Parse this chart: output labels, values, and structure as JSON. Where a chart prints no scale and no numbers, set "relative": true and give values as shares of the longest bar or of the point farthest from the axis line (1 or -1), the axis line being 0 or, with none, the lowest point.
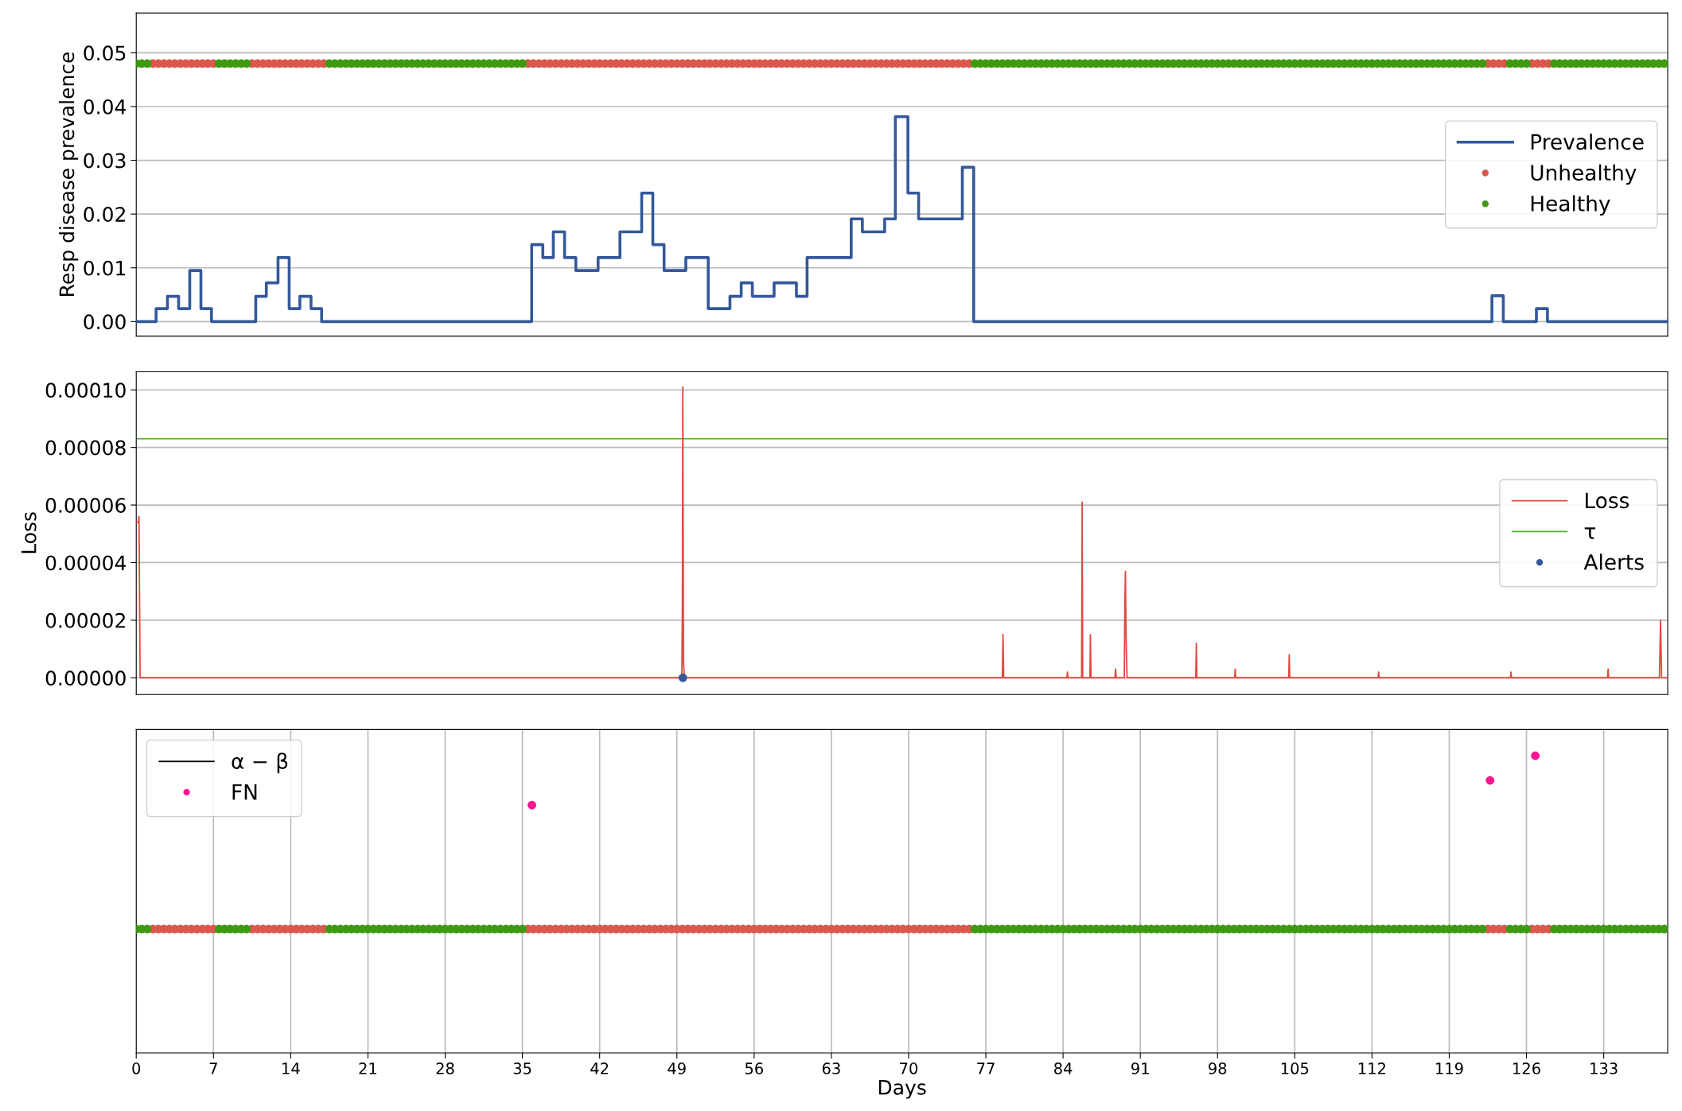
{
  "chart_data": [
    {
      "type": "step",
      "ylabel": "Resp disease prevalence",
      "xlim": [
        0,
        138.8
      ],
      "ylim": [
        -0.0027,
        0.0574
      ],
      "yticks": [
        {
          "value": 0,
          "label": "0.00"
        },
        {
          "value": 0.01,
          "label": "0.01"
        },
        {
          "value": 0.02,
          "label": "0.02"
        },
        {
          "value": 0.03,
          "label": "0.03"
        },
        {
          "value": 0.04,
          "label": "0.04"
        },
        {
          "value": 0.05,
          "label": "0.05"
        }
      ],
      "grid": "y",
      "legend": "right",
      "tick_labels": "y",
      "series": [
        {
          "name": "Prevalence",
          "color": "#34589a",
          "x": [
            0,
            1.8,
            2.83,
            3.84,
            4.85,
            5.86,
            6.82,
            10.83,
            11.79,
            12.85,
            13.86,
            14.83,
            15.84,
            16.8,
            35.84,
            36.85,
            37.8,
            38.82,
            39.84,
            41.86,
            43.84,
            45.81,
            46.82,
            47.84,
            49.81,
            51.84,
            53.81,
            54.83,
            55.84,
            57.81,
            59.83,
            60.8,
            64.8,
            65.81,
            67.83,
            68.8,
            69.94,
            70.91,
            74.87,
            75.9,
            122.87,
            123.9,
            126.9,
            127.9,
            138.8
          ],
          "values": [
            0,
            0.0024,
            0.0047,
            0.0024,
            0.0095,
            0.0024,
            0,
            0.0047,
            0.0072,
            0.0119,
            0.0024,
            0.0047,
            0.0024,
            0,
            0.0143,
            0.0119,
            0.0167,
            0.0119,
            0.0095,
            0.0119,
            0.0167,
            0.0239,
            0.0143,
            0.0095,
            0.0119,
            0.0024,
            0.0047,
            0.0072,
            0.0047,
            0.0072,
            0.0047,
            0.0119,
            0.0191,
            0.0167,
            0.0191,
            0.0381,
            0.0239,
            0.0191,
            0.0287,
            0,
            0.0048,
            0,
            0.0024,
            0,
            0
          ]
        },
        {
          "name": "Unhealthy",
          "type": "scatter",
          "color": "#dc574d",
          "x": [
            1.5,
            2,
            2.5,
            3,
            3.5,
            4,
            4.5,
            5,
            5.5,
            6,
            6.5,
            7,
            10.5,
            11,
            11.5,
            12,
            12.5,
            13,
            13.5,
            14,
            14.5,
            15,
            15.5,
            16,
            16.5,
            17,
            35.5,
            36,
            36.5,
            37,
            37.5,
            38,
            38.5,
            39,
            39.5,
            40,
            40.5,
            41,
            41.5,
            42,
            42.5,
            43,
            43.5,
            44,
            44.5,
            45,
            45.5,
            46,
            46.5,
            47,
            47.5,
            48,
            48.5,
            49,
            49.5,
            50,
            50.5,
            51,
            51.5,
            52,
            52.5,
            53,
            53.5,
            54,
            54.5,
            55,
            55.5,
            56,
            56.5,
            57,
            57.5,
            58,
            58.5,
            59,
            59.5,
            60,
            60.5,
            61,
            61.5,
            62,
            62.5,
            63,
            63.5,
            64,
            64.5,
            65,
            65.5,
            66,
            66.5,
            67,
            67.5,
            68,
            68.5,
            69,
            69.5,
            70,
            70.5,
            71,
            71.5,
            72,
            72.5,
            73,
            73.5,
            74,
            74.5,
            75,
            75.5,
            122.5,
            123,
            123.5,
            124,
            126.5,
            127,
            127.5,
            128
          ],
          "values": [
            0.048,
            0.048,
            0.048,
            0.048,
            0.048,
            0.048,
            0.048,
            0.048,
            0.048,
            0.048,
            0.048,
            0.048,
            0.048,
            0.048,
            0.048,
            0.048,
            0.048,
            0.048,
            0.048,
            0.048,
            0.048,
            0.048,
            0.048,
            0.048,
            0.048,
            0.048,
            0.048,
            0.048,
            0.048,
            0.048,
            0.048,
            0.048,
            0.048,
            0.048,
            0.048,
            0.048,
            0.048,
            0.048,
            0.048,
            0.048,
            0.048,
            0.048,
            0.048,
            0.048,
            0.048,
            0.048,
            0.048,
            0.048,
            0.048,
            0.048,
            0.048,
            0.048,
            0.048,
            0.048,
            0.048,
            0.048,
            0.048,
            0.048,
            0.048,
            0.048,
            0.048,
            0.048,
            0.048,
            0.048,
            0.048,
            0.048,
            0.048,
            0.048,
            0.048,
            0.048,
            0.048,
            0.048,
            0.048,
            0.048,
            0.048,
            0.048,
            0.048,
            0.048,
            0.048,
            0.048,
            0.048,
            0.048,
            0.048,
            0.048,
            0.048,
            0.048,
            0.048,
            0.048,
            0.048,
            0.048,
            0.048,
            0.048,
            0.048,
            0.048,
            0.048,
            0.048,
            0.048,
            0.048,
            0.048,
            0.048,
            0.048,
            0.048,
            0.048,
            0.048,
            0.048,
            0.048,
            0.048,
            0.048,
            0.048,
            0.048,
            0.048,
            0.048,
            0.048,
            0.048,
            0.048
          ]
        },
        {
          "name": "Healthy",
          "type": "scatter",
          "color": "#3f9a12",
          "x": [
            0,
            0.5,
            1,
            7.5,
            8,
            8.5,
            9,
            9.5,
            10,
            17.5,
            18,
            18.5,
            19,
            19.5,
            20,
            20.5,
            21,
            21.5,
            22,
            22.5,
            23,
            23.5,
            24,
            24.5,
            25,
            25.5,
            26,
            26.5,
            27,
            27.5,
            28,
            28.5,
            29,
            29.5,
            30,
            30.5,
            31,
            31.5,
            32,
            32.5,
            33,
            33.5,
            34,
            34.5,
            35,
            76,
            76.5,
            77,
            77.5,
            78,
            78.5,
            79,
            79.5,
            80,
            80.5,
            81,
            81.5,
            82,
            82.5,
            83,
            83.5,
            84,
            84.5,
            85,
            85.5,
            86,
            86.5,
            87,
            87.5,
            88,
            88.5,
            89,
            89.5,
            90,
            90.5,
            91,
            91.5,
            92,
            92.5,
            93,
            93.5,
            94,
            94.5,
            95,
            95.5,
            96,
            96.5,
            97,
            97.5,
            98,
            98.5,
            99,
            99.5,
            100,
            100.5,
            101,
            101.5,
            102,
            102.5,
            103,
            103.5,
            104,
            104.5,
            105,
            105.5,
            106,
            106.5,
            107,
            107.5,
            108,
            108.5,
            109,
            109.5,
            110,
            110.5,
            111,
            111.5,
            112,
            112.5,
            113,
            113.5,
            114,
            114.5,
            115,
            115.5,
            116,
            116.5,
            117,
            117.5,
            118,
            118.5,
            119,
            119.5,
            120,
            120.5,
            121,
            121.5,
            122,
            124.5,
            125,
            125.5,
            126,
            128.5,
            129,
            129.5,
            130,
            130.5,
            131,
            131.5,
            132,
            132.5,
            133,
            133.5,
            134,
            134.5,
            135,
            135.5,
            136,
            136.5,
            137,
            137.5,
            138,
            138.5
          ],
          "values": [
            0.048,
            0.048,
            0.048,
            0.048,
            0.048,
            0.048,
            0.048,
            0.048,
            0.048,
            0.048,
            0.048,
            0.048,
            0.048,
            0.048,
            0.048,
            0.048,
            0.048,
            0.048,
            0.048,
            0.048,
            0.048,
            0.048,
            0.048,
            0.048,
            0.048,
            0.048,
            0.048,
            0.048,
            0.048,
            0.048,
            0.048,
            0.048,
            0.048,
            0.048,
            0.048,
            0.048,
            0.048,
            0.048,
            0.048,
            0.048,
            0.048,
            0.048,
            0.048,
            0.048,
            0.048,
            0.048,
            0.048,
            0.048,
            0.048,
            0.048,
            0.048,
            0.048,
            0.048,
            0.048,
            0.048,
            0.048,
            0.048,
            0.048,
            0.048,
            0.048,
            0.048,
            0.048,
            0.048,
            0.048,
            0.048,
            0.048,
            0.048,
            0.048,
            0.048,
            0.048,
            0.048,
            0.048,
            0.048,
            0.048,
            0.048,
            0.048,
            0.048,
            0.048,
            0.048,
            0.048,
            0.048,
            0.048,
            0.048,
            0.048,
            0.048,
            0.048,
            0.048,
            0.048,
            0.048,
            0.048,
            0.048,
            0.048,
            0.048,
            0.048,
            0.048,
            0.048,
            0.048,
            0.048,
            0.048,
            0.048,
            0.048,
            0.048,
            0.048,
            0.048,
            0.048,
            0.048,
            0.048,
            0.048,
            0.048,
            0.048,
            0.048,
            0.048,
            0.048,
            0.048,
            0.048,
            0.048,
            0.048,
            0.048,
            0.048,
            0.048,
            0.048,
            0.048,
            0.048,
            0.048,
            0.048,
            0.048,
            0.048,
            0.048,
            0.048,
            0.048,
            0.048,
            0.048,
            0.048,
            0.048,
            0.048,
            0.048,
            0.048,
            0.048,
            0.048,
            0.048,
            0.048,
            0.048,
            0.048,
            0.048,
            0.048,
            0.048,
            0.048,
            0.048,
            0.048,
            0.048,
            0.048,
            0.048,
            0.048,
            0.048,
            0.048,
            0.048,
            0.048,
            0.048,
            0.048,
            0.048,
            0.048,
            0.048,
            0.048
          ]
        }
      ]
    },
    {
      "type": "line",
      "ylabel": "Loss",
      "xlim": [
        0,
        138.8
      ],
      "ylim": [
        -5.8e-06,
        0.0001063
      ],
      "yticks": [
        {
          "value": 0,
          "label": "0.00000"
        },
        {
          "value": 2e-05,
          "label": "0.00002"
        },
        {
          "value": 4e-05,
          "label": "0.00004"
        },
        {
          "value": 6e-05,
          "label": "0.00006"
        },
        {
          "value": 8e-05,
          "label": "0.00008"
        },
        {
          "value": 0.0001,
          "label": "0.00010"
        }
      ],
      "grid": "y",
      "legend": "right",
      "tick_labels": "y",
      "ref_lines": [
        {
          "axis": "y",
          "value": 8.3e-05,
          "label": "τ",
          "color": "#4caf20"
        }
      ],
      "series": [
        {
          "name": "Loss",
          "color": "#e04a3f",
          "x": [
            0,
            0.2,
            0.25,
            0.35,
            49.45,
            49.5,
            49.54,
            49.6,
            49.7,
            78.5,
            78.56,
            78.62,
            84.35,
            84.4,
            84.45,
            85.68,
            85.73,
            85.78,
            86.43,
            86.48,
            86.53,
            88.7,
            88.76,
            88.82,
            89.55,
            89.6,
            89.65,
            89.72,
            89.8,
            96.03,
            96.08,
            96.13,
            99.55,
            99.6,
            99.65,
            104.45,
            104.5,
            104.55,
            112.55,
            112.6,
            112.65,
            124.55,
            124.6,
            124.65,
            133.35,
            133.4,
            133.45,
            138.05,
            138.1,
            138.15,
            138.25,
            138.8
          ],
          "values": [
            5.4e-05,
            5.4e-05,
            5.6e-05,
            0,
            0,
            2.6e-05,
            0.000101,
            5e-06,
            0,
            0,
            1.5e-05,
            0,
            0,
            2e-06,
            0,
            0,
            6.1e-05,
            0,
            0,
            1.5e-05,
            0,
            0,
            3e-06,
            0,
            0,
            2.5e-05,
            3.7e-05,
            1.2e-05,
            0,
            0,
            1.2e-05,
            0,
            0,
            3e-06,
            0,
            0,
            8e-06,
            0,
            0,
            2e-06,
            0,
            0,
            2e-06,
            0,
            0,
            3e-06,
            0,
            0,
            1e-05,
            2e-05,
            0,
            0
          ]
        },
        {
          "name": "Alerts",
          "type": "scatter",
          "color": "#34589a",
          "x": [
            49.54
          ],
          "values": [
            0
          ]
        }
      ]
    },
    {
      "type": "scatter",
      "relative": true,
      "xlabel": "Days",
      "xlim": [
        0,
        138.8
      ],
      "xticks": [
        0,
        7,
        14,
        21,
        28,
        35,
        42,
        49,
        56,
        63,
        70,
        77,
        84,
        91,
        98,
        105,
        112,
        119,
        126,
        133
      ],
      "grid": "x",
      "legend": "upper left",
      "tick_labels": "x",
      "series": [
        {
          "name": "α − β",
          "type": "line",
          "color": "#000000",
          "values": [
            null
          ]
        },
        {
          "color": "#dc574d",
          "x": [
            1.5,
            2,
            2.5,
            3,
            3.5,
            4,
            4.5,
            5,
            5.5,
            6,
            6.5,
            7,
            10.5,
            11,
            11.5,
            12,
            12.5,
            13,
            13.5,
            14,
            14.5,
            15,
            15.5,
            16,
            16.5,
            17,
            35.5,
            36,
            36.5,
            37,
            37.5,
            38,
            38.5,
            39,
            39.5,
            40,
            40.5,
            41,
            41.5,
            42,
            42.5,
            43,
            43.5,
            44,
            44.5,
            45,
            45.5,
            46,
            46.5,
            47,
            47.5,
            48,
            48.5,
            49,
            49.5,
            50,
            50.5,
            51,
            51.5,
            52,
            52.5,
            53,
            53.5,
            54,
            54.5,
            55,
            55.5,
            56,
            56.5,
            57,
            57.5,
            58,
            58.5,
            59,
            59.5,
            60,
            60.5,
            61,
            61.5,
            62,
            62.5,
            63,
            63.5,
            64,
            64.5,
            65,
            65.5,
            66,
            66.5,
            67,
            67.5,
            68,
            68.5,
            69,
            69.5,
            70,
            70.5,
            71,
            71.5,
            72,
            72.5,
            73,
            73.5,
            74,
            74.5,
            75,
            75.5,
            122.5,
            123,
            123.5,
            124,
            126.5,
            127,
            127.5,
            128
          ],
          "values": [
            0.417,
            0.417,
            0.417,
            0.417,
            0.417,
            0.417,
            0.417,
            0.417,
            0.417,
            0.417,
            0.417,
            0.417,
            0.417,
            0.417,
            0.417,
            0.417,
            0.417,
            0.417,
            0.417,
            0.417,
            0.417,
            0.417,
            0.417,
            0.417,
            0.417,
            0.417,
            0.417,
            0.417,
            0.417,
            0.417,
            0.417,
            0.417,
            0.417,
            0.417,
            0.417,
            0.417,
            0.417,
            0.417,
            0.417,
            0.417,
            0.417,
            0.417,
            0.417,
            0.417,
            0.417,
            0.417,
            0.417,
            0.417,
            0.417,
            0.417,
            0.417,
            0.417,
            0.417,
            0.417,
            0.417,
            0.417,
            0.417,
            0.417,
            0.417,
            0.417,
            0.417,
            0.417,
            0.417,
            0.417,
            0.417,
            0.417,
            0.417,
            0.417,
            0.417,
            0.417,
            0.417,
            0.417,
            0.417,
            0.417,
            0.417,
            0.417,
            0.417,
            0.417,
            0.417,
            0.417,
            0.417,
            0.417,
            0.417,
            0.417,
            0.417,
            0.417,
            0.417,
            0.417,
            0.417,
            0.417,
            0.417,
            0.417,
            0.417,
            0.417,
            0.417,
            0.417,
            0.417,
            0.417,
            0.417,
            0.417,
            0.417,
            0.417,
            0.417,
            0.417,
            0.417,
            0.417,
            0.417,
            0.417,
            0.417,
            0.417,
            0.417,
            0.417,
            0.417,
            0.417,
            0.417
          ]
        },
        {
          "color": "#3f9a12",
          "x": [
            0,
            0.5,
            1,
            7.5,
            8,
            8.5,
            9,
            9.5,
            10,
            17.5,
            18,
            18.5,
            19,
            19.5,
            20,
            20.5,
            21,
            21.5,
            22,
            22.5,
            23,
            23.5,
            24,
            24.5,
            25,
            25.5,
            26,
            26.5,
            27,
            27.5,
            28,
            28.5,
            29,
            29.5,
            30,
            30.5,
            31,
            31.5,
            32,
            32.5,
            33,
            33.5,
            34,
            34.5,
            35,
            76,
            76.5,
            77,
            77.5,
            78,
            78.5,
            79,
            79.5,
            80,
            80.5,
            81,
            81.5,
            82,
            82.5,
            83,
            83.5,
            84,
            84.5,
            85,
            85.5,
            86,
            86.5,
            87,
            87.5,
            88,
            88.5,
            89,
            89.5,
            90,
            90.5,
            91,
            91.5,
            92,
            92.5,
            93,
            93.5,
            94,
            94.5,
            95,
            95.5,
            96,
            96.5,
            97,
            97.5,
            98,
            98.5,
            99,
            99.5,
            100,
            100.5,
            101,
            101.5,
            102,
            102.5,
            103,
            103.5,
            104,
            104.5,
            105,
            105.5,
            106,
            106.5,
            107,
            107.5,
            108,
            108.5,
            109,
            109.5,
            110,
            110.5,
            111,
            111.5,
            112,
            112.5,
            113,
            113.5,
            114,
            114.5,
            115,
            115.5,
            116,
            116.5,
            117,
            117.5,
            118,
            118.5,
            119,
            119.5,
            120,
            120.5,
            121,
            121.5,
            122,
            124.5,
            125,
            125.5,
            126,
            128.5,
            129,
            129.5,
            130,
            130.5,
            131,
            131.5,
            132,
            132.5,
            133,
            133.5,
            134,
            134.5,
            135,
            135.5,
            136,
            136.5,
            137,
            137.5,
            138,
            138.5
          ],
          "values": [
            0.417,
            0.417,
            0.417,
            0.417,
            0.417,
            0.417,
            0.417,
            0.417,
            0.417,
            0.417,
            0.417,
            0.417,
            0.417,
            0.417,
            0.417,
            0.417,
            0.417,
            0.417,
            0.417,
            0.417,
            0.417,
            0.417,
            0.417,
            0.417,
            0.417,
            0.417,
            0.417,
            0.417,
            0.417,
            0.417,
            0.417,
            0.417,
            0.417,
            0.417,
            0.417,
            0.417,
            0.417,
            0.417,
            0.417,
            0.417,
            0.417,
            0.417,
            0.417,
            0.417,
            0.417,
            0.417,
            0.417,
            0.417,
            0.417,
            0.417,
            0.417,
            0.417,
            0.417,
            0.417,
            0.417,
            0.417,
            0.417,
            0.417,
            0.417,
            0.417,
            0.417,
            0.417,
            0.417,
            0.417,
            0.417,
            0.417,
            0.417,
            0.417,
            0.417,
            0.417,
            0.417,
            0.417,
            0.417,
            0.417,
            0.417,
            0.417,
            0.417,
            0.417,
            0.417,
            0.417,
            0.417,
            0.417,
            0.417,
            0.417,
            0.417,
            0.417,
            0.417,
            0.417,
            0.417,
            0.417,
            0.417,
            0.417,
            0.417,
            0.417,
            0.417,
            0.417,
            0.417,
            0.417,
            0.417,
            0.417,
            0.417,
            0.417,
            0.417,
            0.417,
            0.417,
            0.417,
            0.417,
            0.417,
            0.417,
            0.417,
            0.417,
            0.417,
            0.417,
            0.417,
            0.417,
            0.417,
            0.417,
            0.417,
            0.417,
            0.417,
            0.417,
            0.417,
            0.417,
            0.417,
            0.417,
            0.417,
            0.417,
            0.417,
            0.417,
            0.417,
            0.417,
            0.417,
            0.417,
            0.417,
            0.417,
            0.417,
            0.417,
            0.417,
            0.417,
            0.417,
            0.417,
            0.417,
            0.417,
            0.417,
            0.417,
            0.417,
            0.417,
            0.417,
            0.417,
            0.417,
            0.417,
            0.417,
            0.417,
            0.417,
            0.417,
            0.417,
            0.417,
            0.417,
            0.417,
            0.417,
            0.417,
            0.417,
            0.417
          ]
        },
        {
          "name": "FN",
          "color": "#ff1493",
          "x": [
            35.86,
            122.7,
            126.8
          ],
          "values": [
            0.834,
            0.917,
            1.0
          ]
        }
      ]
    }
  ]
}
